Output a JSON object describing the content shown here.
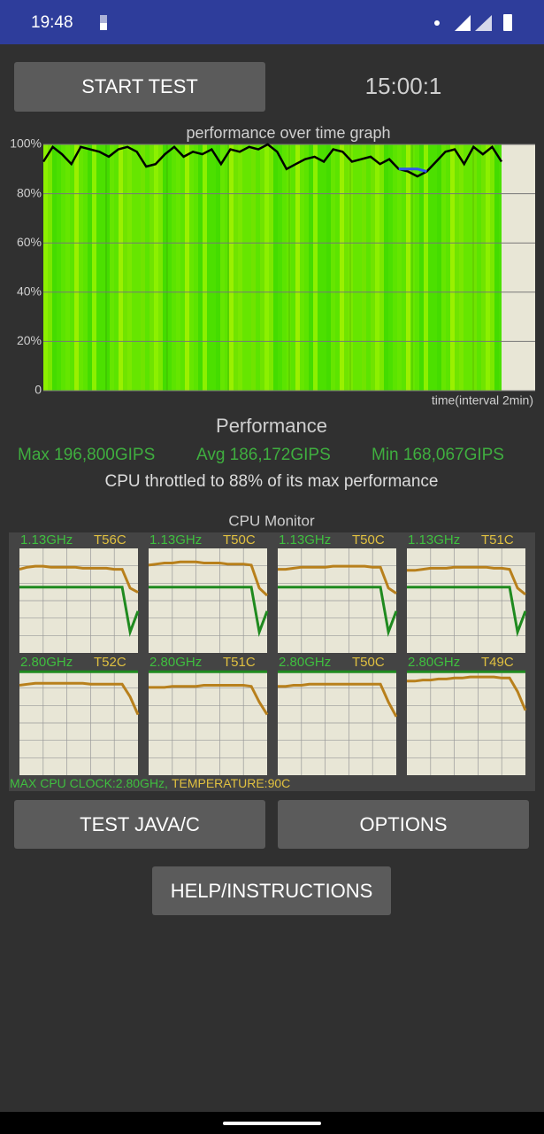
{
  "status_bar": {
    "time": "19:48"
  },
  "start_button": "START TEST",
  "timer": "15:00:1",
  "performance_graph": {
    "type": "line",
    "title": "performance over time graph",
    "x_label": "time(interval 2min)",
    "ylim": [
      0,
      100
    ],
    "yticks": [
      0,
      {
        "value": 20,
        "label": "20%"
      },
      {
        "value": 40,
        "label": "40%"
      },
      {
        "value": 60,
        "label": "60%"
      },
      {
        "value": 80,
        "label": "80%"
      },
      {
        "value": 100,
        "label": "100%"
      }
    ],
    "grid": true,
    "series": [
      {
        "color": "#000000",
        "values": [
          93,
          99,
          96,
          92,
          99,
          98,
          97,
          95,
          98,
          99,
          97,
          91,
          92,
          96,
          99,
          95,
          97,
          96,
          98,
          92,
          98,
          97,
          99,
          98,
          100,
          97,
          90,
          92,
          94,
          95,
          93,
          98,
          97,
          93,
          94,
          95,
          92,
          94,
          90,
          89,
          87,
          89,
          93,
          97,
          98,
          92,
          99,
          96,
          99,
          93
        ]
      },
      {
        "color": "#3355ee",
        "values": [
          null,
          null,
          null,
          null,
          null,
          null,
          null,
          null,
          null,
          null,
          null,
          null,
          null,
          null,
          null,
          null,
          null,
          null,
          null,
          null,
          null,
          null,
          null,
          null,
          null,
          null,
          null,
          null,
          null,
          null,
          null,
          null,
          null,
          null,
          null,
          null,
          null,
          null,
          90,
          90,
          90,
          89,
          null,
          null,
          null,
          null,
          null,
          null,
          null,
          null
        ]
      }
    ]
  },
  "performance": {
    "heading": "Performance",
    "max": "Max 196,800GIPS",
    "avg": "Avg 186,172GIPS",
    "min": "Min 168,067GIPS",
    "throttle_note": "CPU throttled to 88% of its max performance"
  },
  "cpu_monitor": {
    "title": "CPU Monitor",
    "cores": [
      {
        "clock": "1.13GHz",
        "temperature": "T56C",
        "temperature_trace": [
          80,
          82,
          83,
          83,
          82,
          82,
          82,
          82,
          81,
          81,
          81,
          81,
          80,
          80,
          62,
          58
        ],
        "clock_trace": [
          63,
          63,
          63,
          63,
          63,
          63,
          63,
          63,
          63,
          63,
          63,
          63,
          63,
          63,
          20,
          40
        ]
      },
      {
        "clock": "1.13GHz",
        "temperature": "T50C",
        "temperature_trace": [
          84,
          85,
          86,
          86,
          87,
          87,
          87,
          86,
          86,
          86,
          85,
          85,
          85,
          84,
          62,
          55
        ],
        "clock_trace": [
          63,
          63,
          63,
          63,
          63,
          63,
          63,
          63,
          63,
          63,
          63,
          63,
          63,
          63,
          20,
          40
        ]
      },
      {
        "clock": "1.13GHz",
        "temperature": "T50C",
        "temperature_trace": [
          80,
          80,
          81,
          82,
          82,
          82,
          82,
          83,
          83,
          83,
          83,
          83,
          82,
          82,
          62,
          57
        ],
        "clock_trace": [
          63,
          63,
          63,
          63,
          63,
          63,
          63,
          63,
          63,
          63,
          63,
          63,
          63,
          63,
          20,
          40
        ]
      },
      {
        "clock": "1.13GHz",
        "temperature": "T51C",
        "temperature_trace": [
          79,
          79,
          80,
          81,
          81,
          81,
          82,
          82,
          82,
          82,
          82,
          81,
          81,
          80,
          62,
          56
        ],
        "clock_trace": [
          63,
          63,
          63,
          63,
          63,
          63,
          63,
          63,
          63,
          63,
          63,
          63,
          63,
          63,
          20,
          40
        ]
      },
      {
        "clock": "2.80GHz",
        "temperature": "T52C",
        "temperature_trace": [
          86,
          87,
          88,
          88,
          88,
          88,
          88,
          88,
          88,
          87,
          87,
          87,
          87,
          87,
          75,
          58
        ],
        "clock_trace": [
          99,
          99,
          99,
          99,
          99,
          99,
          99,
          99,
          99,
          99,
          99,
          99,
          99,
          99,
          99,
          99
        ]
      },
      {
        "clock": "2.80GHz",
        "temperature": "T51C",
        "temperature_trace": [
          84,
          84,
          84,
          85,
          85,
          85,
          85,
          86,
          86,
          86,
          86,
          86,
          86,
          85,
          70,
          58
        ],
        "clock_trace": [
          99,
          99,
          99,
          99,
          99,
          99,
          99,
          99,
          99,
          99,
          99,
          99,
          99,
          99,
          99,
          99
        ]
      },
      {
        "clock": "2.80GHz",
        "temperature": "T50C",
        "temperature_trace": [
          85,
          85,
          86,
          86,
          87,
          87,
          87,
          87,
          87,
          87,
          87,
          87,
          87,
          87,
          70,
          56
        ],
        "clock_trace": [
          99,
          99,
          99,
          99,
          99,
          99,
          99,
          99,
          99,
          99,
          99,
          99,
          99,
          99,
          99,
          99
        ]
      },
      {
        "clock": "2.80GHz",
        "temperature": "T49C",
        "temperature_trace": [
          90,
          90,
          91,
          91,
          92,
          92,
          93,
          93,
          94,
          94,
          94,
          94,
          93,
          93,
          80,
          62
        ],
        "clock_trace": [
          99,
          99,
          99,
          99,
          99,
          99,
          99,
          99,
          99,
          99,
          99,
          99,
          99,
          99,
          99,
          99
        ]
      }
    ],
    "max_clock": "MAX CPU CLOCK:2.80GHz,",
    "max_temperature": "TEMPERATURE:90C"
  },
  "buttons": [
    "TEST JAVA/C",
    "OPTIONS",
    "HELP/INSTRUCTIONS"
  ]
}
